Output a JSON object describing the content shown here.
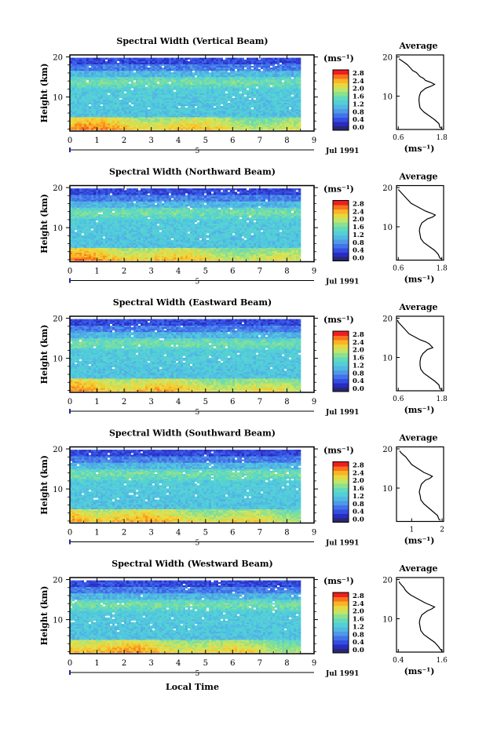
{
  "figure": {
    "date_label": "Jul 1991",
    "date_tick_label": "5",
    "xlabel_bottom": "Local Time",
    "colorbar_unit": "(ms⁻¹)",
    "average_title": "Average"
  },
  "chart_data": [
    {
      "type": "heatmap",
      "title": "Spectral Width (Vertical Beam)",
      "xlabel": "",
      "ylabel": "Height (km)",
      "xlim": [
        0,
        9
      ],
      "ylim": [
        1.5,
        20.5
      ],
      "x_ticks": [
        0,
        1,
        2,
        3,
        4,
        5,
        6,
        7,
        8,
        9
      ],
      "y_ticks": [
        10,
        20
      ],
      "data_x_range": [
        0,
        8.5
      ],
      "colorbar": {
        "unit": "(ms⁻¹)",
        "ticks": [
          "2.8",
          "2.4",
          "2.0",
          "1.6",
          "1.2",
          "0.8",
          "0.4",
          "0.0"
        ],
        "range": [
          0,
          2.8
        ]
      },
      "profile": {
        "title": "Average",
        "xlabel": "(ms⁻¹)",
        "x_ticks": [
          "0.6",
          "1.8"
        ],
        "xlim": [
          0.55,
          1.85
        ],
        "height_km": [
          1.8,
          2,
          3,
          4,
          5,
          6,
          7,
          8,
          9,
          10,
          11,
          12,
          12.5,
          13,
          13.5,
          14,
          14.5,
          15,
          15.5,
          16,
          16.5,
          17,
          17.5,
          18,
          18.5,
          19,
          19.5
        ],
        "width_ms": [
          1.8,
          1.75,
          1.72,
          1.6,
          1.45,
          1.3,
          1.2,
          1.18,
          1.17,
          1.18,
          1.22,
          1.35,
          1.5,
          1.6,
          1.5,
          1.35,
          1.3,
          1.2,
          1.15,
          1.1,
          1.0,
          0.95,
          0.9,
          0.85,
          0.78,
          0.7,
          0.62
        ]
      }
    },
    {
      "type": "heatmap",
      "title": "Spectral Width (Northward Beam)",
      "xlabel": "",
      "ylabel": "Height (km)",
      "xlim": [
        0,
        9
      ],
      "ylim": [
        1.5,
        20.5
      ],
      "x_ticks": [
        0,
        1,
        2,
        3,
        4,
        5,
        6,
        7,
        8,
        9
      ],
      "y_ticks": [
        10,
        20
      ],
      "data_x_range": [
        0,
        8.5
      ],
      "colorbar": {
        "unit": "(ms⁻¹)",
        "ticks": [
          "2.8",
          "2.4",
          "2.0",
          "1.6",
          "1.2",
          "0.8",
          "0.4",
          "0.0"
        ],
        "range": [
          0,
          2.8
        ]
      },
      "profile": {
        "title": "Average",
        "xlabel": "(ms⁻¹)",
        "x_ticks": [
          "0.6",
          "1.8"
        ],
        "xlim": [
          0.55,
          1.85
        ],
        "height_km": [
          1.8,
          2,
          3,
          4,
          5,
          6,
          7,
          8,
          9,
          10,
          11,
          12,
          12.5,
          13,
          13.5,
          14,
          14.5,
          15,
          15.5,
          16,
          16.5,
          17,
          17.5,
          18,
          18.5,
          19,
          19.5
        ],
        "width_ms": [
          1.8,
          1.75,
          1.7,
          1.6,
          1.45,
          1.3,
          1.22,
          1.2,
          1.18,
          1.2,
          1.25,
          1.4,
          1.55,
          1.62,
          1.5,
          1.35,
          1.25,
          1.15,
          1.05,
          0.95,
          0.9,
          0.85,
          0.8,
          0.75,
          0.7,
          0.65,
          0.6
        ]
      }
    },
    {
      "type": "heatmap",
      "title": "Spectral Width (Eastward Beam)",
      "xlabel": "",
      "ylabel": "Height (km)",
      "xlim": [
        0,
        9
      ],
      "ylim": [
        1.5,
        20.5
      ],
      "x_ticks": [
        0,
        1,
        2,
        3,
        4,
        5,
        6,
        7,
        8,
        9
      ],
      "y_ticks": [
        10,
        20
      ],
      "data_x_range": [
        0,
        8.5
      ],
      "colorbar": {
        "unit": "(ms⁻¹)",
        "ticks": [
          "2.8",
          "2.4",
          "2.0",
          "1.6",
          "1.2",
          "0.8",
          "0.4",
          "0.0"
        ],
        "range": [
          0,
          2.8
        ]
      },
      "profile": {
        "title": "Average",
        "xlabel": "(ms⁻¹)",
        "x_ticks": [
          "0.6",
          "1.8"
        ],
        "xlim": [
          0.55,
          1.85
        ],
        "height_km": [
          1.8,
          2,
          3,
          4,
          5,
          6,
          7,
          8,
          9,
          10,
          11,
          12,
          12.5,
          13,
          13.5,
          14,
          14.5,
          15,
          15.5,
          16,
          16.5,
          17,
          17.5,
          18,
          18.5,
          19,
          19.5
        ],
        "width_ms": [
          1.8,
          1.75,
          1.72,
          1.6,
          1.45,
          1.3,
          1.22,
          1.2,
          1.2,
          1.22,
          1.28,
          1.4,
          1.55,
          1.5,
          1.45,
          1.35,
          1.2,
          1.1,
          1.0,
          0.9,
          0.85,
          0.8,
          0.75,
          0.7,
          0.65,
          0.6,
          0.58
        ]
      }
    },
    {
      "type": "heatmap",
      "title": "Spectral Width (Southward Beam)",
      "xlabel": "",
      "ylabel": "Height (km)",
      "xlim": [
        0,
        9
      ],
      "ylim": [
        1.5,
        20.5
      ],
      "x_ticks": [
        0,
        1,
        2,
        3,
        4,
        5,
        6,
        7,
        8,
        9
      ],
      "y_ticks": [
        10,
        20
      ],
      "data_x_range": [
        0,
        8.5
      ],
      "colorbar": {
        "unit": "(ms⁻¹)",
        "ticks": [
          "2.8",
          "2.4",
          "2.0",
          "1.6",
          "1.2",
          "0.8",
          "0.4",
          "0.0"
        ],
        "range": [
          0,
          2.8
        ]
      },
      "profile": {
        "title": "Average",
        "xlabel": "(ms⁻¹)",
        "x_ticks": [
          "1",
          "2"
        ],
        "xlim": [
          0.5,
          2.05
        ],
        "height_km": [
          1.8,
          2,
          3,
          4,
          5,
          6,
          7,
          8,
          9,
          10,
          11,
          12,
          12.5,
          13,
          13.5,
          14,
          14.5,
          15,
          15.5,
          16,
          16.5,
          17,
          17.5,
          18,
          18.5,
          19,
          19.5
        ],
        "width_ms": [
          1.95,
          1.9,
          1.85,
          1.7,
          1.55,
          1.4,
          1.3,
          1.28,
          1.25,
          1.28,
          1.32,
          1.45,
          1.6,
          1.68,
          1.55,
          1.4,
          1.3,
          1.2,
          1.1,
          1.0,
          0.95,
          0.9,
          0.85,
          0.8,
          0.72,
          0.65,
          0.6
        ]
      }
    },
    {
      "type": "heatmap",
      "title": "Spectral Width (Westward Beam)",
      "xlabel": "",
      "ylabel": "Height (km)",
      "xlim": [
        0,
        9
      ],
      "ylim": [
        1.5,
        20.5
      ],
      "x_ticks": [
        0,
        1,
        2,
        3,
        4,
        5,
        6,
        7,
        8,
        9
      ],
      "y_ticks": [
        10,
        20
      ],
      "data_x_range": [
        0,
        8.5
      ],
      "colorbar": {
        "unit": "(ms⁻¹)",
        "ticks": [
          "2.8",
          "2.4",
          "2.0",
          "1.6",
          "1.2",
          "0.8",
          "0.4",
          "0.0"
        ],
        "range": [
          0,
          2.8
        ]
      },
      "profile": {
        "title": "Average",
        "xlabel": "(ms⁻¹)",
        "x_ticks": [
          "0.4",
          "1.6"
        ],
        "xlim": [
          0.35,
          1.65
        ],
        "height_km": [
          1.8,
          2,
          3,
          4,
          5,
          6,
          7,
          8,
          9,
          10,
          11,
          12,
          12.5,
          13,
          13.5,
          14,
          14.5,
          15,
          15.5,
          16,
          16.5,
          17,
          17.5,
          18,
          18.5,
          19,
          19.5
        ],
        "width_ms": [
          1.62,
          1.58,
          1.5,
          1.4,
          1.25,
          1.1,
          1.02,
          1.0,
          0.98,
          1.0,
          1.05,
          1.2,
          1.32,
          1.4,
          1.28,
          1.15,
          1.05,
          0.95,
          0.85,
          0.75,
          0.68,
          0.62,
          0.58,
          0.55,
          0.5,
          0.45,
          0.42
        ]
      }
    }
  ]
}
